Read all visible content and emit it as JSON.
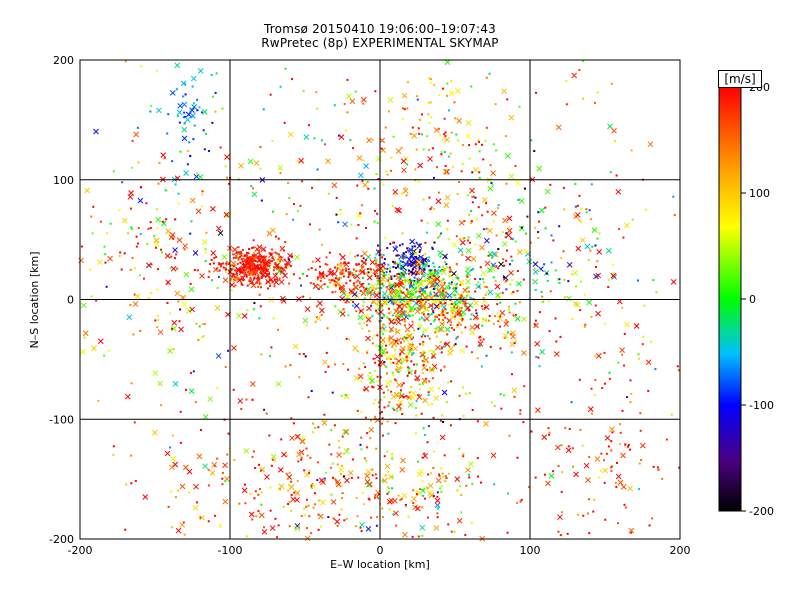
{
  "title": "Tromsø 20150410 19:06:00–19:07:43",
  "subtitle": "RwPretec (8p) EXPERIMENTAL SKYMAP",
  "chart_data": {
    "type": "scatter",
    "title": "Tromsø 20150410 19:06:00–19:07:43",
    "subtitle": "RwPretec (8p) EXPERIMENTAL SKYMAP",
    "xlabel": "E–W location [km]",
    "ylabel": "N–S location [km]",
    "xlim": [
      -200,
      200
    ],
    "ylim": [
      -200,
      200
    ],
    "xticks": [
      -200,
      -100,
      0,
      100,
      200
    ],
    "yticks": [
      -200,
      -100,
      0,
      100,
      200
    ],
    "grid": true,
    "colorbar": {
      "label": "[m/s]",
      "range": [
        -200,
        200
      ],
      "ticks": [
        200,
        100,
        0,
        -100,
        -200
      ],
      "colormap": [
        "#000000",
        "#4b0082",
        "#0000ff",
        "#00bfff",
        "#00ff00",
        "#ffff00",
        "#ffa500",
        "#ff0000"
      ]
    },
    "markers": [
      "x",
      "dot"
    ],
    "clusters": [
      {
        "x": -85,
        "y": 28,
        "spread": [
          12,
          8
        ],
        "count": 320,
        "v_mean": 190,
        "v_sd": 15
      },
      {
        "x": 20,
        "y": 30,
        "spread": [
          10,
          8
        ],
        "count": 140,
        "v_mean": -120,
        "v_sd": 40
      },
      {
        "x": 25,
        "y": 5,
        "spread": [
          22,
          14
        ],
        "count": 420,
        "v_mean": 20,
        "v_sd": 60
      },
      {
        "x": 45,
        "y": -10,
        "spread": [
          25,
          15
        ],
        "count": 240,
        "v_mean": 150,
        "v_sd": 60
      },
      {
        "x": 10,
        "y": -60,
        "spread": [
          15,
          30
        ],
        "count": 260,
        "v_mean": 130,
        "v_sd": 80
      },
      {
        "x": -20,
        "y": 20,
        "spread": [
          20,
          10
        ],
        "count": 160,
        "v_mean": 180,
        "v_sd": 30
      },
      {
        "x": -130,
        "y": 150,
        "spread": [
          10,
          25
        ],
        "count": 60,
        "v_mean": -60,
        "v_sd": 30
      },
      {
        "x": 40,
        "y": 130,
        "spread": [
          30,
          35
        ],
        "count": 150,
        "v_mean": 130,
        "v_sd": 90
      },
      {
        "x": 95,
        "y": 40,
        "spread": [
          30,
          25
        ],
        "count": 150,
        "v_mean": 40,
        "v_sd": 140
      },
      {
        "x": -60,
        "y": -160,
        "spread": [
          45,
          25
        ],
        "count": 200,
        "v_mean": 170,
        "v_sd": 60
      },
      {
        "x": 20,
        "y": -160,
        "spread": [
          30,
          25
        ],
        "count": 130,
        "v_mean": 100,
        "v_sd": 120
      },
      {
        "x": -150,
        "y": 40,
        "spread": [
          30,
          45
        ],
        "count": 150,
        "v_mean": 120,
        "v_sd": 110
      },
      {
        "x": 150,
        "y": -130,
        "spread": [
          35,
          50
        ],
        "count": 140,
        "v_mean": 180,
        "v_sd": 40
      },
      {
        "x": 0,
        "y": 0,
        "spread": [
          120,
          120
        ],
        "count": 700,
        "v_mean": 120,
        "v_sd": 120
      }
    ]
  }
}
